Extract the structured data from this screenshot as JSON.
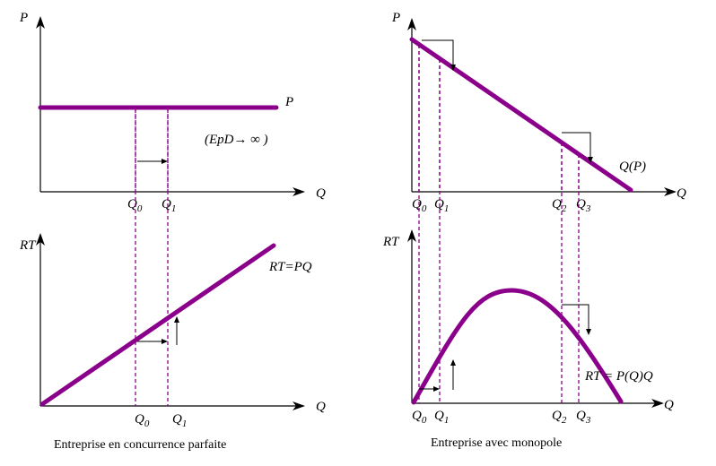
{
  "colors": {
    "curve": "#8b008b",
    "guide": "#8b008b",
    "axis": "#000000"
  },
  "panels": {
    "top_left": {
      "y_label": "P",
      "x_label": "Q",
      "line_label": "P",
      "elasticity_label": "(EpD→ ∞ )",
      "q0": "Q0",
      "q1": "Q1"
    },
    "bottom_left": {
      "y_label": "RT",
      "x_label": "Q",
      "line_label": "RT=PQ",
      "q0": "Q0",
      "q1": "Q1"
    },
    "top_right": {
      "y_label": "P",
      "x_label": "Q",
      "curve_label": "Q(P)",
      "q0": "Q0",
      "q1": "Q1",
      "q2": "Q2",
      "q3": "Q3"
    },
    "bottom_right": {
      "y_label": "RT",
      "x_label": "Q",
      "curve_label": "RT = P(Q)Q",
      "q0": "Q0",
      "q1": "Q1",
      "q2": "Q2",
      "q3": "Q3"
    }
  },
  "captions": {
    "left": "Entreprise en concurrence parfaite",
    "right": "Entreprise avec monopole"
  }
}
